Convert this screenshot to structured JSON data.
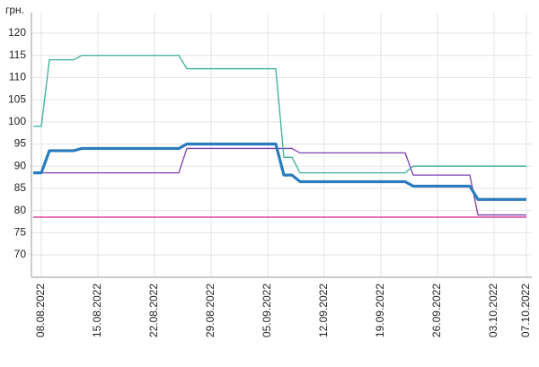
{
  "chart_data": {
    "type": "line",
    "ylabel": "грн.",
    "x": [
      "07.08.2022",
      "08.08.2022",
      "09.08.2022",
      "10.08.2022",
      "11.08.2022",
      "12.08.2022",
      "13.08.2022",
      "14.08.2022",
      "15.08.2022",
      "16.08.2022",
      "17.08.2022",
      "18.08.2022",
      "19.08.2022",
      "20.08.2022",
      "21.08.2022",
      "22.08.2022",
      "23.08.2022",
      "24.08.2022",
      "25.08.2022",
      "26.08.2022",
      "27.08.2022",
      "28.08.2022",
      "29.08.2022",
      "30.08.2022",
      "31.08.2022",
      "01.09.2022",
      "02.09.2022",
      "03.09.2022",
      "04.09.2022",
      "05.09.2022",
      "06.09.2022",
      "07.09.2022",
      "08.09.2022",
      "09.09.2022",
      "10.09.2022",
      "11.09.2022",
      "12.09.2022",
      "13.09.2022",
      "14.09.2022",
      "15.09.2022",
      "16.09.2022",
      "17.09.2022",
      "18.09.2022",
      "19.09.2022",
      "20.09.2022",
      "21.09.2022",
      "22.09.2022",
      "23.09.2022",
      "24.09.2022",
      "25.09.2022",
      "26.09.2022",
      "27.09.2022",
      "28.09.2022",
      "29.09.2022",
      "30.09.2022",
      "01.10.2022",
      "02.10.2022",
      "03.10.2022",
      "04.10.2022",
      "05.10.2022",
      "06.10.2022",
      "07.10.2022"
    ],
    "series": [
      {
        "color": "#d0258c",
        "width": 1.3,
        "values": [
          78.5,
          78.5,
          78.5,
          78.5,
          78.5,
          78.5,
          78.5,
          78.5,
          78.5,
          78.5,
          78.5,
          78.5,
          78.5,
          78.5,
          78.5,
          78.5,
          78.5,
          78.5,
          78.5,
          78.5,
          78.5,
          78.5,
          78.5,
          78.5,
          78.5,
          78.5,
          78.5,
          78.5,
          78.5,
          78.5,
          78.5,
          78.5,
          78.5,
          78.5,
          78.5,
          78.5,
          78.5,
          78.5,
          78.5,
          78.5,
          78.5,
          78.5,
          78.5,
          78.5,
          78.5,
          78.5,
          78.5,
          78.5,
          78.5,
          78.5,
          78.5,
          78.5,
          78.5,
          78.5,
          78.5,
          78.5,
          78.5,
          78.5,
          78.5,
          78.5,
          78.5,
          78.5
        ]
      },
      {
        "color": "#7d3fb2",
        "width": 1.3,
        "values": [
          88.5,
          88.5,
          88.5,
          88.5,
          88.5,
          88.5,
          88.5,
          88.5,
          88.5,
          88.5,
          88.5,
          88.5,
          88.5,
          88.5,
          88.5,
          88.5,
          88.5,
          88.5,
          88.5,
          94,
          94,
          94,
          94,
          94,
          94,
          94,
          94,
          94,
          94,
          94,
          94,
          94,
          94,
          93,
          93,
          93,
          93,
          93,
          93,
          93,
          93,
          93,
          93,
          93,
          93,
          93,
          93,
          88,
          88,
          88,
          88,
          88,
          88,
          88,
          88,
          79,
          79,
          79,
          79,
          79,
          79,
          79
        ]
      },
      {
        "color": "#3aae98",
        "width": 1.3,
        "values": [
          99,
          99,
          114,
          114,
          114,
          114,
          115,
          115,
          115,
          115,
          115,
          115,
          115,
          115,
          115,
          115,
          115,
          115,
          115,
          112,
          112,
          112,
          112,
          112,
          112,
          112,
          112,
          112,
          112,
          112,
          112,
          92,
          92,
          88.5,
          88.5,
          88.5,
          88.5,
          88.5,
          88.5,
          88.5,
          88.5,
          88.5,
          88.5,
          88.5,
          88.5,
          88.5,
          88.5,
          90,
          90,
          90,
          90,
          90,
          90,
          90,
          90,
          90,
          90,
          90,
          90,
          90,
          90,
          90
        ]
      },
      {
        "color": "#2a7bbd",
        "width": 3.2,
        "values": [
          88.5,
          88.5,
          93.5,
          93.5,
          93.5,
          93.5,
          94,
          94,
          94,
          94,
          94,
          94,
          94,
          94,
          94,
          94,
          94,
          94,
          94,
          95,
          95,
          95,
          95,
          95,
          95,
          95,
          95,
          95,
          95,
          95,
          95,
          88,
          88,
          86.5,
          86.5,
          86.5,
          86.5,
          86.5,
          86.5,
          86.5,
          86.5,
          86.5,
          86.5,
          86.5,
          86.5,
          86.5,
          86.5,
          85.5,
          85.5,
          85.5,
          85.5,
          85.5,
          85.5,
          85.5,
          85.5,
          82.5,
          82.5,
          82.5,
          82.5,
          82.5,
          82.5,
          82.5
        ]
      }
    ],
    "xlim": [
      "07.08.2022",
      "07.10.2022"
    ],
    "xticks": [
      "08.08.2022",
      "15.08.2022",
      "22.08.2022",
      "29.08.2022",
      "05.09.2022",
      "12.09.2022",
      "19.09.2022",
      "26.09.2022",
      "03.10.2022",
      "07.10.2022"
    ],
    "ylim": [
      65,
      124.5
    ],
    "yticks": [
      70,
      75,
      80,
      85,
      90,
      95,
      100,
      105,
      110,
      115,
      120
    ],
    "grid": true
  }
}
